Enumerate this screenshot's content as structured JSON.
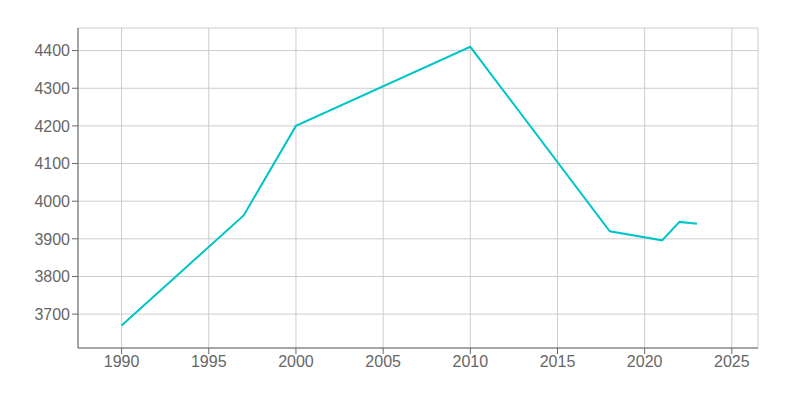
{
  "chart_data": {
    "type": "line",
    "x": [
      1990,
      1997,
      2000,
      2010,
      2018,
      2021,
      2022,
      2023
    ],
    "values": [
      3670,
      3962,
      4200,
      4410,
      3920,
      3896,
      3945,
      3940
    ],
    "color": "#00C5C8",
    "xlim": [
      1987.5,
      2026.5
    ],
    "ylim": [
      3610,
      4460
    ],
    "xticks": [
      1990,
      1995,
      2000,
      2005,
      2010,
      2015,
      2020,
      2025
    ],
    "yticks": [
      3700,
      3800,
      3900,
      4000,
      4100,
      4200,
      4300,
      4400
    ],
    "grid": true
  }
}
